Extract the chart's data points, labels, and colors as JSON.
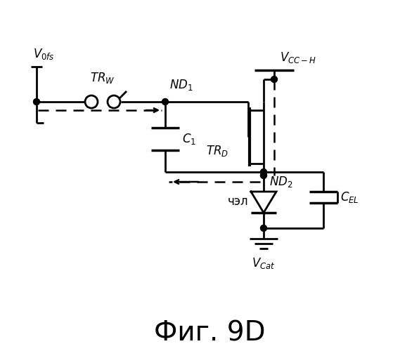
{
  "title": "Фиг. 9D",
  "title_fontsize": 28,
  "bg_color": "#ffffff",
  "line_color": "#000000",
  "dashed_color": "#000000",
  "lw": 2.0,
  "EL_label": "чэл"
}
